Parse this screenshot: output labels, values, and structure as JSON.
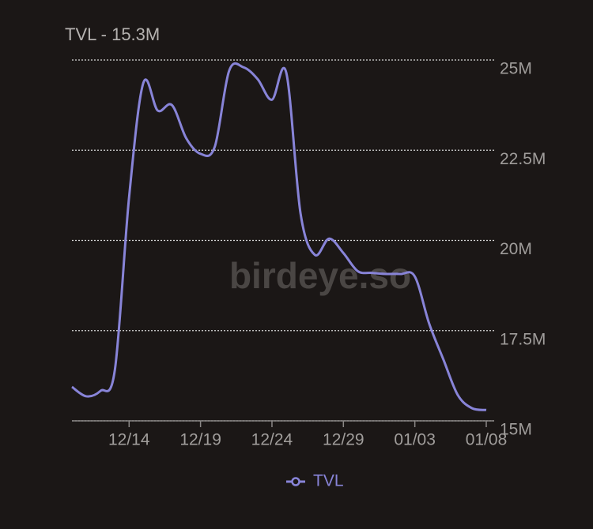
{
  "chart_data": {
    "type": "line",
    "title": "TVL - 15.3M",
    "watermark": "birdeye.so",
    "categories": [
      null,
      null,
      null,
      null,
      "12/14",
      null,
      null,
      null,
      null,
      "12/19",
      null,
      null,
      null,
      null,
      "12/24",
      null,
      null,
      null,
      null,
      "12/29",
      null,
      null,
      null,
      null,
      "01/03",
      null,
      null,
      null,
      null,
      "01/08"
    ],
    "series": [
      {
        "name": "TVL",
        "color": "#8884d8",
        "values": [
          15.94,
          15.68,
          15.83,
          16.4,
          21.2,
          24.37,
          23.6,
          23.75,
          22.83,
          22.4,
          22.6,
          24.7,
          24.8,
          24.47,
          23.9,
          24.65,
          20.75,
          19.6,
          20.05,
          19.65,
          19.15,
          19.1,
          19.07,
          19.07,
          19.0,
          17.7,
          16.7,
          15.72,
          15.35,
          15.3
        ]
      }
    ],
    "ylim": [
      15,
      25
    ],
    "yticks": [
      {
        "value": 15,
        "label": "15M"
      },
      {
        "value": 17.5,
        "label": "17.5M"
      },
      {
        "value": 20,
        "label": "20M"
      },
      {
        "value": 22.5,
        "label": "22.5M"
      },
      {
        "value": 25,
        "label": "25M"
      }
    ],
    "grid": true,
    "legend": "bottom"
  }
}
